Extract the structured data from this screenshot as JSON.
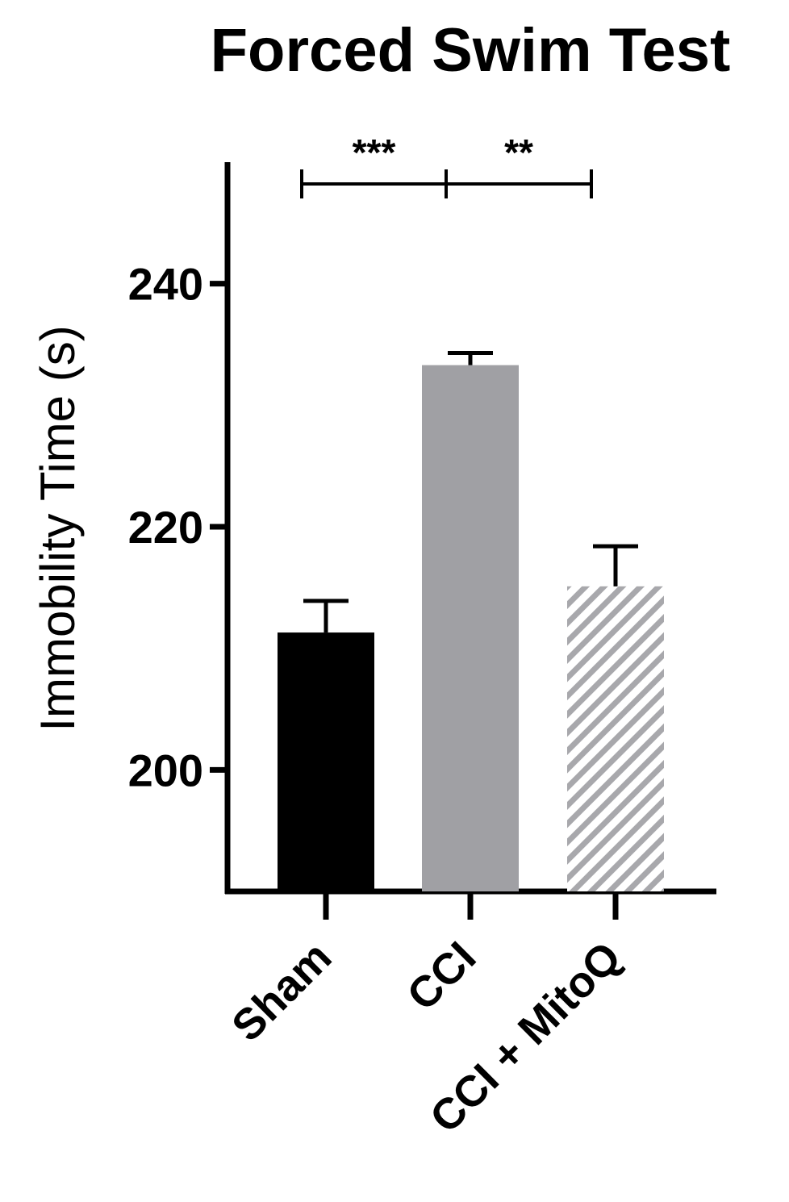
{
  "chart_data": {
    "type": "bar",
    "title": "Forced Swim Test",
    "xlabel": "",
    "ylabel": "Immobility Time (s)",
    "ylim": [
      190,
      250
    ],
    "yticks": [
      200,
      220,
      240
    ],
    "ytick_labels": [
      "200",
      "220",
      "240"
    ],
    "categories": [
      "Sham",
      "CCI",
      "CCI + MitoQ"
    ],
    "values": [
      211.3,
      233.3,
      215.1
    ],
    "error": [
      2.6,
      1.0,
      3.3
    ],
    "bar_fills": [
      "solid",
      "solid",
      "hatched"
    ],
    "bar_colors": [
      "#000000",
      "#a0a0a4",
      "#a8a8ac"
    ],
    "significance": [
      {
        "from": "Sham",
        "to": "CCI",
        "label": "***"
      },
      {
        "from": "CCI",
        "to": "CCI + MitoQ",
        "label": "**"
      }
    ],
    "grid": false,
    "legend": "none"
  }
}
